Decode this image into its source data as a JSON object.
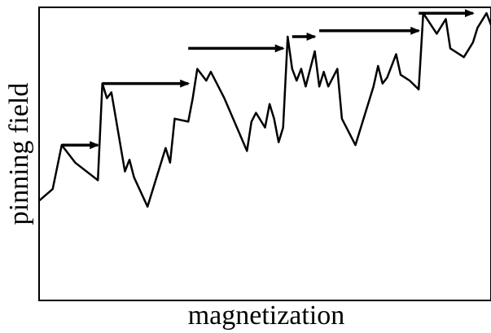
{
  "diagram": {
    "xlabel": "magnetization",
    "ylabel": "pinning field",
    "line_color": "#000000",
    "background": "#ffffff"
  },
  "chart_data": {
    "type": "line",
    "xlabel": "magnetization",
    "ylabel": "pinning field",
    "grid": false,
    "legend": "none",
    "series": [
      {
        "values_x": [
          0,
          3,
          5,
          8,
          13,
          14,
          15,
          16,
          19,
          20,
          21,
          24,
          28,
          29,
          30,
          33,
          34,
          35,
          37,
          38,
          41,
          46,
          47,
          48,
          50,
          51,
          52,
          53,
          54,
          55,
          56,
          57,
          58,
          59,
          61,
          62,
          63,
          64,
          66,
          67,
          70,
          74,
          75,
          76,
          77,
          79,
          80,
          82,
          84,
          85,
          88,
          90,
          91,
          94,
          96,
          97,
          99,
          100
        ],
        "values_y": [
          0.34,
          0.38,
          0.53,
          0.47,
          0.41,
          0.74,
          0.69,
          0.71,
          0.44,
          0.48,
          0.42,
          0.32,
          0.52,
          0.47,
          0.62,
          0.61,
          0.69,
          0.79,
          0.75,
          0.78,
          0.69,
          0.51,
          0.61,
          0.64,
          0.59,
          0.67,
          0.62,
          0.54,
          0.59,
          0.9,
          0.79,
          0.75,
          0.79,
          0.73,
          0.85,
          0.73,
          0.78,
          0.73,
          0.79,
          0.62,
          0.53,
          0.73,
          0.8,
          0.74,
          0.76,
          0.84,
          0.77,
          0.75,
          0.72,
          0.98,
          0.91,
          0.96,
          0.86,
          0.83,
          0.88,
          0.93,
          0.98,
          0.94
        ]
      }
    ],
    "jumps": [
      {
        "x_start": 5,
        "x_end": 13,
        "y": 0.53
      },
      {
        "x_start": 14,
        "x_end": 33,
        "y": 0.74
      },
      {
        "x_start": 33,
        "x_end": 54,
        "y": 0.86
      },
      {
        "x_start": 56,
        "x_end": 61,
        "y": 0.9
      },
      {
        "x_start": 62,
        "x_end": 84,
        "y": 0.92
      },
      {
        "x_start": 84,
        "x_end": 96,
        "y": 0.98
      }
    ]
  }
}
